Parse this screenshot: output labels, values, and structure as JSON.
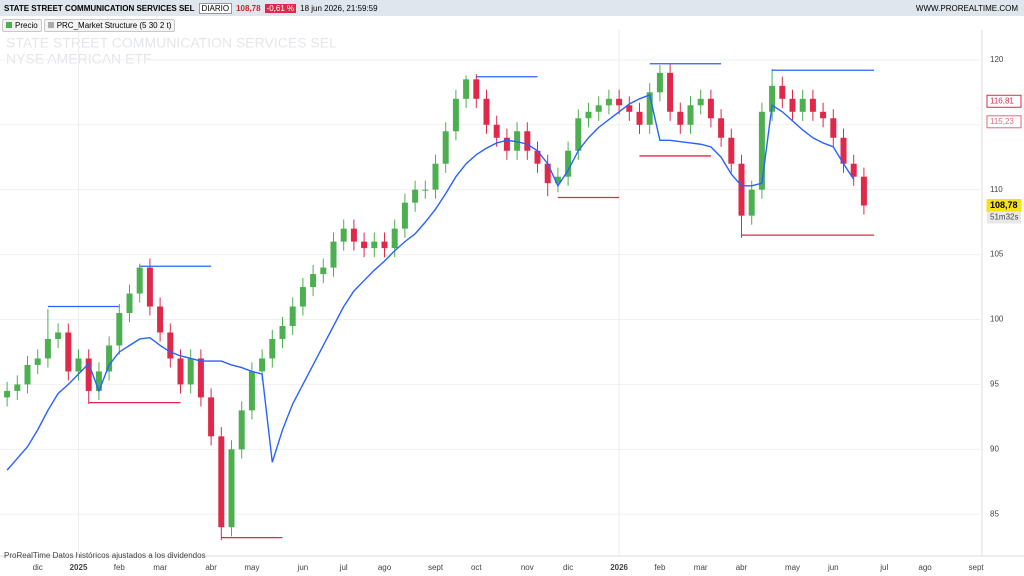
{
  "header": {
    "symbol": "STATE STREET COMMUNICATION SERVICES SEL",
    "period": "DIARIO",
    "last": "108,78",
    "change": "-0,61 %",
    "datetime": "18 jun 2026, 21:59:59",
    "site": "WWW.PROREALTIME.COM"
  },
  "legend": {
    "price": "Precio",
    "indicator": "PRC_Market Structure (5 30 2 t)"
  },
  "watermark": [
    "STATE STREET COMMUNICATION SERVICES SEL",
    "NYSE AMERICAN  ETF"
  ],
  "footer": "ProRealTime Datos históricos ajustados a los dividendos",
  "chart_data": {
    "type": "candlestick",
    "up_color": "#4caf50",
    "down_color": "#e0284a",
    "categories": [
      null,
      null,
      null,
      "dic",
      null,
      null,
      null,
      "2025",
      null,
      null,
      null,
      "feb",
      null,
      null,
      null,
      "mar",
      null,
      null,
      null,
      null,
      "abr",
      null,
      null,
      null,
      "may",
      null,
      null,
      null,
      null,
      "jun",
      null,
      null,
      null,
      "jul",
      null,
      null,
      null,
      "ago",
      null,
      null,
      null,
      null,
      "sept",
      null,
      null,
      null,
      "oct",
      null,
      null,
      null,
      null,
      "nov",
      null,
      null,
      null,
      "dic",
      null,
      null,
      null,
      null,
      "2026",
      null,
      null,
      null,
      "feb",
      null,
      null,
      null,
      "mar",
      null,
      null,
      null,
      "abr",
      null,
      null,
      null,
      null,
      "may",
      null,
      null,
      null,
      "jun",
      null,
      null,
      null,
      null,
      "jul",
      null,
      null,
      null,
      "ago",
      null,
      null,
      null,
      null,
      "sept"
    ],
    "open": [
      94,
      94.5,
      95,
      96.5,
      97,
      98.5,
      99,
      96,
      97,
      94.5,
      96,
      98,
      100.5,
      102,
      104,
      101,
      99,
      97,
      95,
      97,
      94,
      91,
      84,
      90,
      93,
      96,
      97,
      98.5,
      99.5,
      101,
      102.5,
      103.5,
      104,
      106,
      107,
      106,
      105.5,
      106,
      105.5,
      107,
      109,
      110,
      110,
      112,
      114.5,
      117,
      118.5,
      117,
      115,
      114,
      113,
      114.5,
      113,
      112,
      110.5,
      111,
      113,
      115.5,
      116,
      116.5,
      117,
      116.5,
      116,
      115,
      117.5,
      119,
      116,
      115,
      116.5,
      117,
      115.5,
      114,
      112,
      108,
      110,
      116,
      118,
      117,
      116,
      117,
      116,
      115.5,
      114,
      112,
      111,
      null,
      null,
      null,
      null,
      null,
      null,
      null,
      null,
      null,
      null,
      null
    ],
    "high": [
      95.2,
      95.7,
      97.2,
      97.7,
      100.8,
      99.7,
      99.7,
      97.7,
      97.7,
      96.7,
      98.7,
      101.2,
      102.7,
      104.3,
      104.7,
      101.7,
      99.7,
      97.7,
      97.7,
      97.7,
      94.7,
      91.7,
      90.7,
      93.7,
      96.7,
      97.7,
      99.2,
      100.2,
      101.7,
      103.2,
      104.2,
      104.7,
      106.7,
      107.7,
      107.7,
      106.7,
      106.7,
      106.7,
      107.7,
      109.7,
      110.7,
      110.7,
      112.7,
      115.2,
      117.7,
      118.8,
      118.9,
      117.7,
      115.7,
      114.7,
      115.2,
      115.2,
      113.7,
      112.7,
      111.7,
      113.7,
      116.2,
      116.7,
      117.2,
      117.7,
      117.7,
      117.2,
      116.7,
      118.2,
      119.6,
      119.7,
      116.7,
      117.2,
      117.7,
      117.7,
      116.2,
      114.7,
      112.7,
      110.7,
      116.7,
      119.3,
      118.7,
      117.7,
      117.7,
      117.7,
      116.7,
      116.2,
      114.7,
      112.7,
      111.7,
      null,
      null,
      null,
      null,
      null,
      null,
      null,
      null,
      null,
      null,
      null
    ],
    "low": [
      93.3,
      93.8,
      94.3,
      95.8,
      96.3,
      97.8,
      95.3,
      95.3,
      93.5,
      93.8,
      95.3,
      97.3,
      99.8,
      101.3,
      100.3,
      98.3,
      96.3,
      94.3,
      94.3,
      93.3,
      90.3,
      83,
      83.3,
      89.3,
      92.3,
      95.3,
      96.3,
      97.8,
      98.8,
      100.3,
      101.8,
      102.8,
      103.3,
      105.3,
      105.3,
      104.8,
      104.8,
      104.8,
      104.8,
      106.3,
      108.3,
      109.3,
      109.3,
      111.3,
      113.8,
      116.3,
      116.3,
      114.3,
      113.3,
      112.3,
      112.3,
      112.3,
      111.3,
      109.5,
      109.8,
      110.3,
      112.3,
      114.8,
      115.3,
      115.8,
      115.8,
      115.3,
      114.3,
      114.3,
      116.8,
      115.3,
      114.3,
      114.3,
      115.8,
      114.8,
      113.3,
      111.3,
      106.3,
      107.3,
      109.3,
      115.3,
      116.3,
      115.3,
      115.3,
      115.3,
      114.8,
      113.3,
      111.3,
      110.3,
      108.08,
      null,
      null,
      null,
      null,
      null,
      null,
      null,
      null,
      null,
      null,
      null
    ],
    "close": [
      94.5,
      95,
      96.5,
      97,
      98.5,
      99,
      96,
      97,
      94.5,
      96,
      98,
      100.5,
      102,
      104,
      101,
      99,
      97,
      95,
      97,
      94,
      91,
      84,
      90,
      93,
      96,
      97,
      98.5,
      99.5,
      101,
      102.5,
      103.5,
      104,
      106,
      107,
      106,
      105.5,
      106,
      105.5,
      107,
      109,
      110,
      110,
      112,
      114.5,
      117,
      118.5,
      117,
      115,
      114,
      113,
      114.5,
      113,
      112,
      110.5,
      111,
      113,
      115.5,
      116,
      116.5,
      117,
      116.5,
      116,
      115,
      117.5,
      119,
      116,
      115,
      116.5,
      117,
      115.5,
      114,
      112,
      108,
      110,
      116,
      118,
      117,
      116,
      117,
      116,
      115.5,
      114,
      112,
      111,
      108.78,
      null,
      null,
      null,
      null,
      null,
      null,
      null,
      null,
      null,
      null,
      null
    ],
    "series": [
      {
        "name": "PRC_Market Structure (5 30 2 t)",
        "color": "#2962ff",
        "values": [
          88.4,
          89.3,
          90.2,
          91.5,
          93,
          94.3,
          95,
          95.8,
          96.6,
          94.5,
          96.5,
          97.5,
          98,
          98.5,
          98.6,
          98,
          97.5,
          97.2,
          97,
          96.8,
          96.8,
          96.8,
          96.5,
          96.3,
          96,
          95.8,
          89,
          91.5,
          93.5,
          95,
          96.5,
          98,
          99.5,
          101,
          102.2,
          103,
          103.8,
          104.5,
          105.3,
          106,
          106.6,
          107.5,
          108.5,
          109.7,
          111,
          112,
          112.7,
          113.2,
          113.6,
          113.8,
          113.7,
          113.5,
          113,
          112,
          110.3,
          111.5,
          113,
          114,
          114.8,
          115.4,
          116,
          116.6,
          117,
          117.3,
          113.8,
          113.8,
          113.7,
          113.6,
          113.5,
          113.3,
          112.5,
          111.2,
          110.3,
          110.3,
          110.5,
          116.5,
          116,
          115.3,
          114.6,
          114,
          113.6,
          113.3,
          112,
          110.8,
          null,
          null,
          null,
          null,
          null,
          null,
          null,
          null,
          null,
          null,
          null,
          null
        ]
      }
    ],
    "levels": [
      {
        "value": 101,
        "color": "#2962ff",
        "from": 4,
        "to": 11
      },
      {
        "value": 104.1,
        "color": "#2962ff",
        "from": 13,
        "to": 20
      },
      {
        "value": 118.7,
        "color": "#2962ff",
        "from": 46,
        "to": 52
      },
      {
        "value": 119.7,
        "color": "#2962ff",
        "from": 63,
        "to": 70
      },
      {
        "value": 119.2,
        "color": "#2962ff",
        "from": 75,
        "to": 85
      },
      {
        "value": 93.6,
        "color": "#e0284a",
        "from": 8,
        "to": 17
      },
      {
        "value": 83.2,
        "color": "#e0284a",
        "from": 21,
        "to": 27
      },
      {
        "value": 109.4,
        "color": "#e0284a",
        "from": 54,
        "to": 60
      },
      {
        "value": 112.6,
        "color": "#e0284a",
        "from": 62,
        "to": 69
      },
      {
        "value": 106.5,
        "color": "#e0284a",
        "from": 72,
        "to": 85
      }
    ],
    "price_labels": [
      {
        "value": 116.81,
        "label": "116,81",
        "color": "#e0284a"
      },
      {
        "value": 115.23,
        "label": "115,23",
        "color": "#e06a80"
      },
      {
        "value": 108.78,
        "label": "108,78",
        "color": "#f5e21b"
      }
    ],
    "timer": "51m32s",
    "ylim": [
      82.4,
      122.3
    ],
    "yticks": [
      85,
      90,
      95,
      100,
      105,
      110,
      115,
      120
    ],
    "grid": true
  }
}
